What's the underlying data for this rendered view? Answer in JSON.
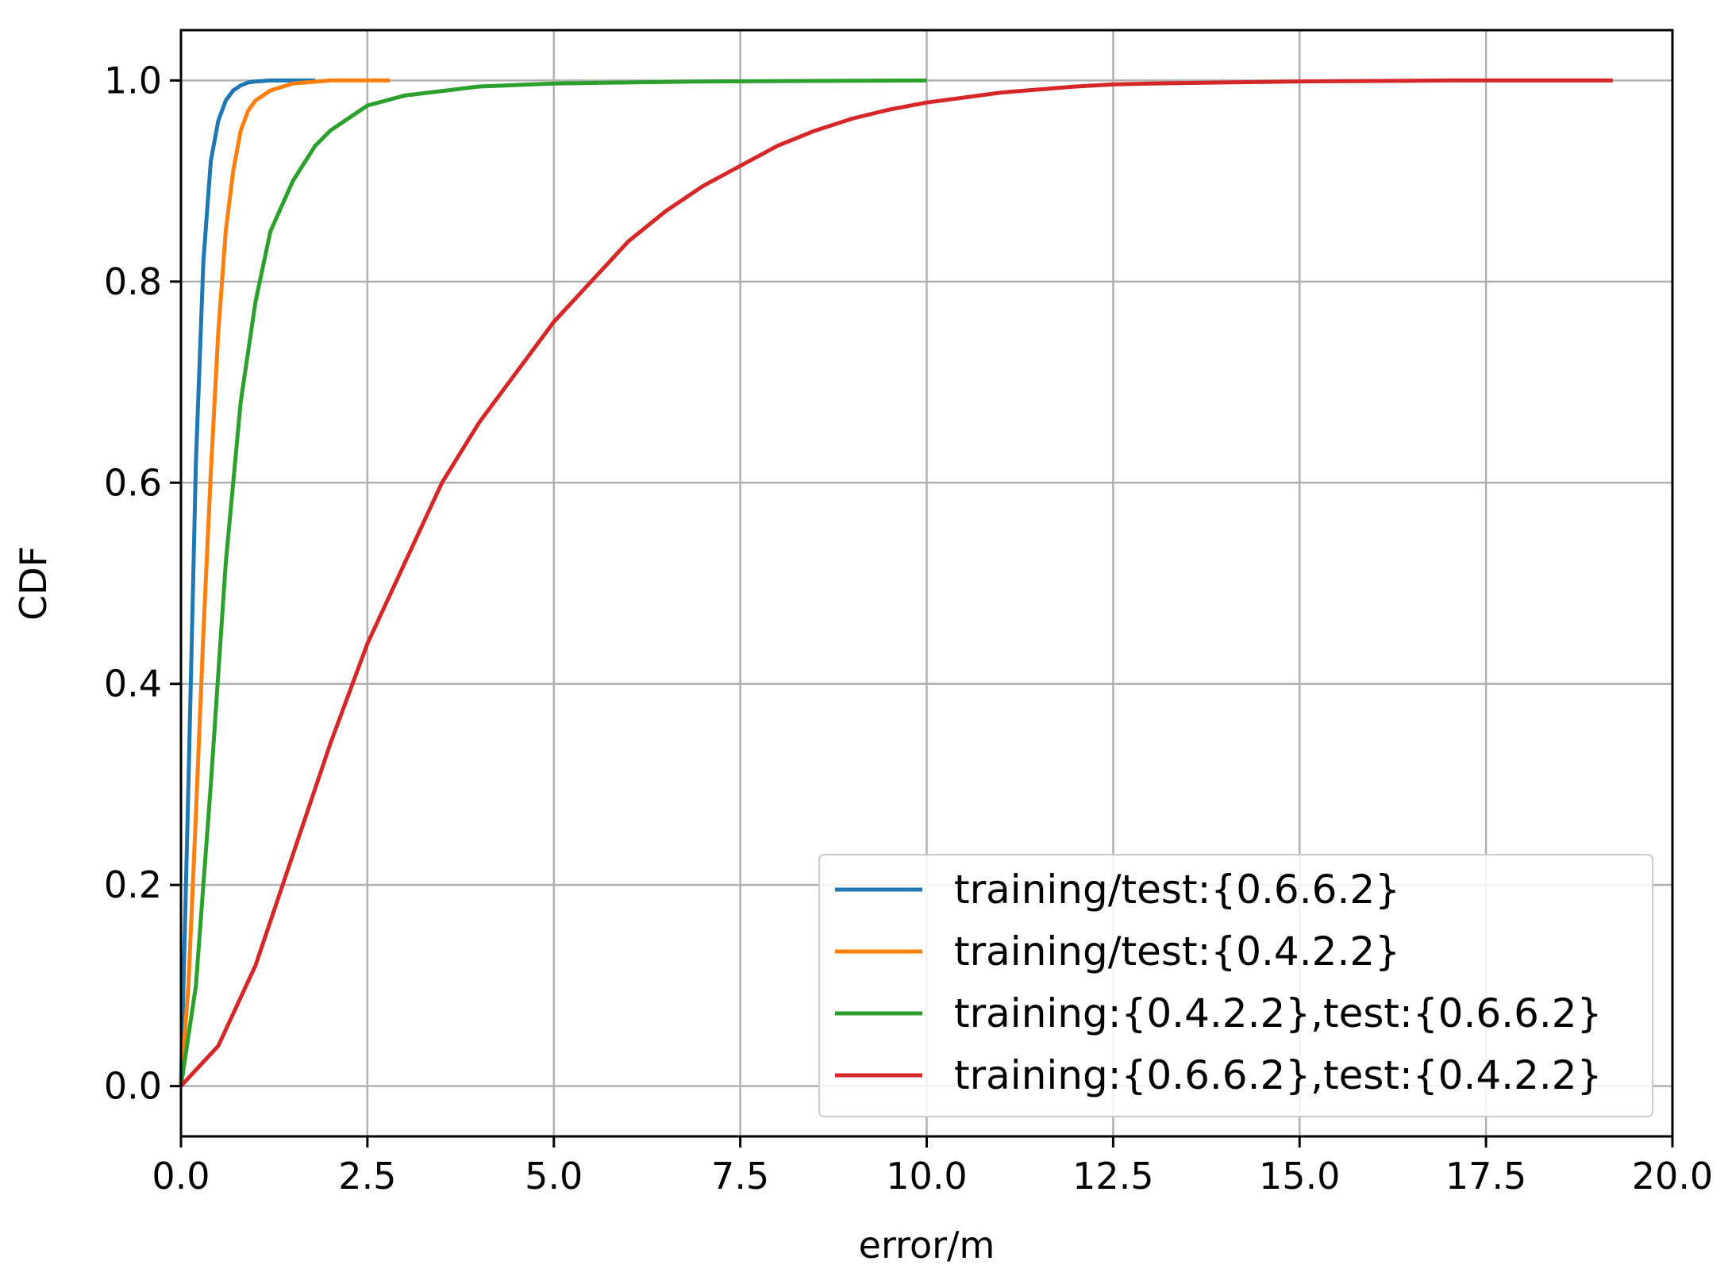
{
  "chart_data": {
    "type": "line",
    "title": "",
    "xlabel": "error/m",
    "ylabel": "CDF",
    "xlim": [
      0.0,
      20.0
    ],
    "ylim": [
      -0.05,
      1.05
    ],
    "xticks": [
      "0.0",
      "2.5",
      "5.0",
      "7.5",
      "10.0",
      "12.5",
      "15.0",
      "17.5",
      "20.0"
    ],
    "yticks": [
      "0.0",
      "0.2",
      "0.4",
      "0.6",
      "0.8",
      "1.0"
    ],
    "grid": true,
    "legend_position": "lower-right",
    "series": [
      {
        "name": "training/test:{0.6.6.2}",
        "color": "#1f77b4",
        "x": [
          0,
          0.1,
          0.2,
          0.3,
          0.4,
          0.5,
          0.6,
          0.7,
          0.8,
          0.9,
          1.0,
          1.2,
          1.5,
          1.8
        ],
        "y": [
          0,
          0.3,
          0.62,
          0.82,
          0.92,
          0.96,
          0.98,
          0.99,
          0.995,
          0.998,
          0.999,
          1.0,
          1.0,
          1.0
        ]
      },
      {
        "name": "training/test:{0.4.2.2}",
        "color": "#ff7f0e",
        "x": [
          0,
          0.1,
          0.2,
          0.3,
          0.4,
          0.5,
          0.6,
          0.7,
          0.8,
          0.9,
          1.0,
          1.2,
          1.5,
          2.0,
          2.8
        ],
        "y": [
          0,
          0.1,
          0.27,
          0.45,
          0.61,
          0.75,
          0.85,
          0.91,
          0.95,
          0.97,
          0.98,
          0.99,
          0.997,
          1.0,
          1.0
        ]
      },
      {
        "name": "training:{0.4.2.2},test:{0.6.6.2}",
        "color": "#2ca02c",
        "x": [
          0,
          0.2,
          0.4,
          0.6,
          0.8,
          1.0,
          1.2,
          1.5,
          1.8,
          2.0,
          2.5,
          3.0,
          4.0,
          5.0,
          7.0,
          10.0
        ],
        "y": [
          0,
          0.1,
          0.3,
          0.52,
          0.68,
          0.78,
          0.85,
          0.9,
          0.935,
          0.95,
          0.975,
          0.985,
          0.994,
          0.997,
          0.999,
          1.0
        ]
      },
      {
        "name": "training:{0.6.6.2},test:{0.4.2.2}",
        "color": "#d62728",
        "x": [
          0,
          0.5,
          1.0,
          1.5,
          2.0,
          2.5,
          3.0,
          3.5,
          4.0,
          4.5,
          5.0,
          5.5,
          6.0,
          6.5,
          7.0,
          7.5,
          8.0,
          8.5,
          9.0,
          9.5,
          10.0,
          11.0,
          12.0,
          12.5,
          13.0,
          14.0,
          15.0,
          17.0,
          19.2
        ],
        "y": [
          0,
          0.04,
          0.12,
          0.23,
          0.34,
          0.44,
          0.52,
          0.6,
          0.66,
          0.71,
          0.76,
          0.8,
          0.84,
          0.87,
          0.895,
          0.915,
          0.935,
          0.95,
          0.962,
          0.971,
          0.978,
          0.988,
          0.994,
          0.996,
          0.997,
          0.998,
          0.999,
          1.0,
          1.0
        ]
      }
    ]
  }
}
